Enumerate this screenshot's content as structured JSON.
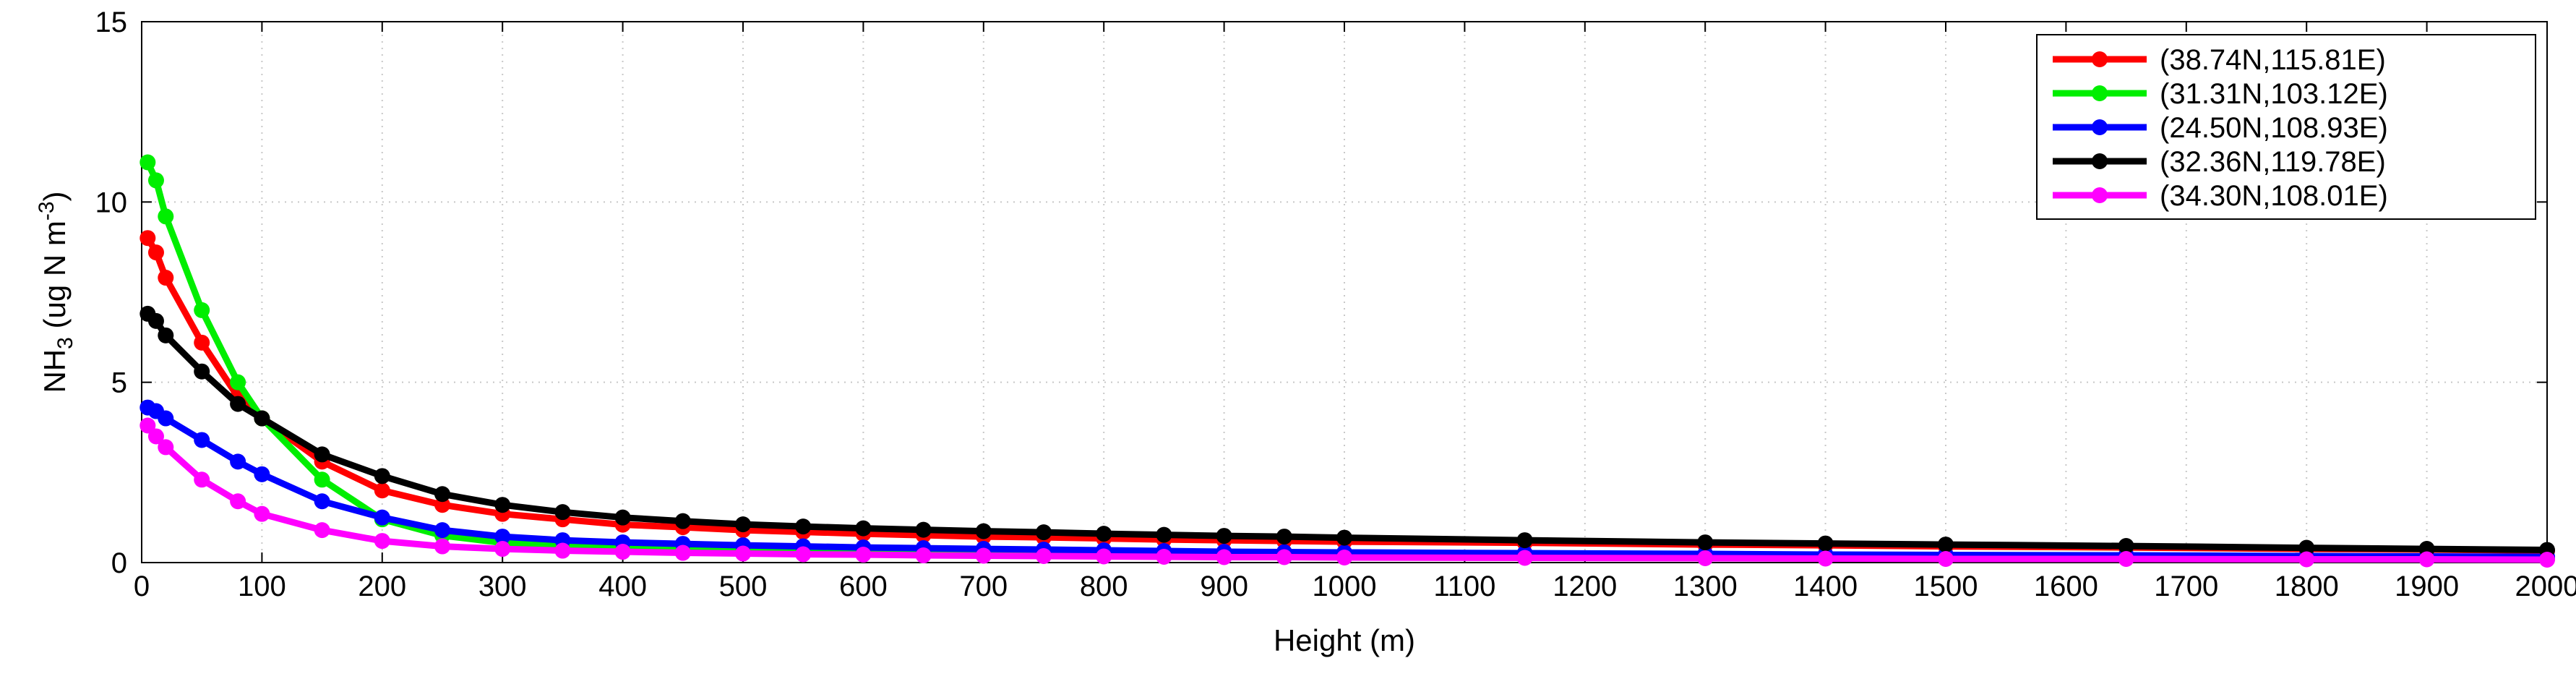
{
  "chart_data": {
    "type": "line",
    "xlabel": "Height (m)",
    "ylabel": {
      "prefix": "NH",
      "sub": "3",
      "mid": " (ug N m",
      "sup": "-3",
      "suffix": ")"
    },
    "xlim": [
      0,
      2000
    ],
    "ylim": [
      0,
      15
    ],
    "xticks": [
      0,
      100,
      200,
      300,
      400,
      500,
      600,
      700,
      800,
      900,
      1000,
      1100,
      1200,
      1300,
      1400,
      1500,
      1600,
      1700,
      1800,
      1900,
      2000
    ],
    "yticks": [
      0,
      5,
      10,
      15
    ],
    "grid": true,
    "grid_style": "dotted",
    "legend_position": "top-right",
    "x": [
      5,
      12,
      20,
      50,
      80,
      100,
      150,
      200,
      250,
      300,
      350,
      400,
      450,
      500,
      550,
      600,
      650,
      700,
      750,
      800,
      850,
      900,
      950,
      1000,
      1150,
      1300,
      1400,
      1500,
      1650,
      1800,
      1900,
      2000
    ],
    "series": [
      {
        "name": "(38.74N,115.81E)",
        "color": "#ff0000",
        "values": [
          9.0,
          8.6,
          7.9,
          6.1,
          4.6,
          4.0,
          2.8,
          2.0,
          1.6,
          1.35,
          1.2,
          1.05,
          0.98,
          0.9,
          0.85,
          0.8,
          0.76,
          0.72,
          0.7,
          0.67,
          0.64,
          0.62,
          0.6,
          0.58,
          0.55,
          0.5,
          0.48,
          0.45,
          0.42,
          0.38,
          0.36,
          0.33
        ]
      },
      {
        "name": "(31.31N,103.12E)",
        "color": "#00ee00",
        "values": [
          11.1,
          10.6,
          9.6,
          7.0,
          5.0,
          4.0,
          2.3,
          1.2,
          0.75,
          0.55,
          0.45,
          0.4,
          0.36,
          0.33,
          0.31,
          0.29,
          0.27,
          0.26,
          0.25,
          0.24,
          0.23,
          0.22,
          0.21,
          0.2,
          0.18,
          0.16,
          0.15,
          0.14,
          0.13,
          0.12,
          0.11,
          0.1
        ]
      },
      {
        "name": "(24.50N,108.93E)",
        "color": "#0000ff",
        "values": [
          4.3,
          4.2,
          4.0,
          3.4,
          2.8,
          2.45,
          1.7,
          1.25,
          0.9,
          0.72,
          0.62,
          0.56,
          0.52,
          0.48,
          0.45,
          0.42,
          0.4,
          0.38,
          0.36,
          0.34,
          0.32,
          0.3,
          0.29,
          0.28,
          0.26,
          0.24,
          0.22,
          0.21,
          0.2,
          0.18,
          0.17,
          0.16
        ]
      },
      {
        "name": "(32.36N,119.78E)",
        "color": "#000000",
        "values": [
          6.9,
          6.7,
          6.3,
          5.3,
          4.4,
          4.0,
          3.0,
          2.4,
          1.9,
          1.6,
          1.4,
          1.25,
          1.15,
          1.06,
          1.0,
          0.95,
          0.91,
          0.87,
          0.84,
          0.8,
          0.77,
          0.74,
          0.72,
          0.69,
          0.62,
          0.56,
          0.53,
          0.5,
          0.46,
          0.41,
          0.38,
          0.35
        ]
      },
      {
        "name": "(34.30N,108.01E)",
        "color": "#ff00ff",
        "values": [
          3.8,
          3.5,
          3.2,
          2.3,
          1.7,
          1.35,
          0.9,
          0.6,
          0.45,
          0.38,
          0.33,
          0.3,
          0.27,
          0.25,
          0.23,
          0.22,
          0.2,
          0.19,
          0.18,
          0.17,
          0.16,
          0.15,
          0.15,
          0.14,
          0.13,
          0.12,
          0.11,
          0.1,
          0.1,
          0.09,
          0.09,
          0.08
        ]
      }
    ]
  }
}
